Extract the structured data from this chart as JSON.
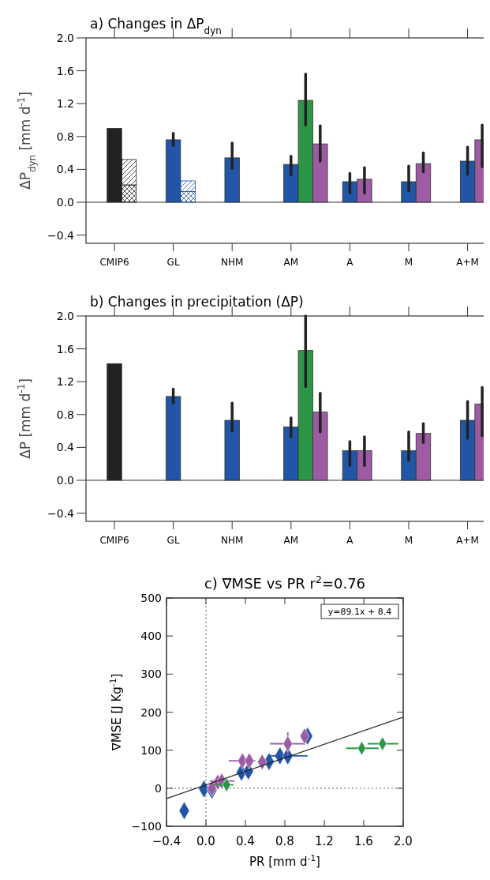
{
  "chart_data": [
    {
      "type": "bar",
      "title": "a) Changes in ΔP$_{dyn}$",
      "ylabel": "ΔP$_{dyn}$ [mm d$^{-1}$]",
      "categories": [
        "CMIP6",
        "GL",
        "NHM",
        "AM",
        "A",
        "M",
        "A+M"
      ],
      "ylim": [
        -0.5,
        2.0
      ],
      "yticks": [
        {
          "value": -0.4,
          "label": "−0.4"
        },
        {
          "value": 0,
          "label": "0.0"
        },
        {
          "value": 0.4,
          "label": "0.4"
        },
        {
          "value": 0.8,
          "label": "0.8"
        },
        {
          "value": 1.2,
          "label": "1.2"
        },
        {
          "value": 1.6,
          "label": "1.6"
        },
        {
          "value": 2.0,
          "label": "2.0"
        }
      ],
      "ref_lines": [
        {
          "axis": "y",
          "value": 0
        }
      ],
      "series": [
        {
          "color": "#222222",
          "values": [
            0.9,
            null,
            null,
            null,
            null,
            null,
            null
          ]
        },
        {
          "color": "#2155a6",
          "values": [
            null,
            0.76,
            0.54,
            0.46,
            0.25,
            0.25,
            0.5
          ],
          "errors": [
            null,
            [
              0.69,
              0.84
            ],
            [
              0.41,
              0.72
            ],
            [
              0.33,
              0.56
            ],
            [
              0.11,
              0.35
            ],
            [
              0.14,
              0.44
            ],
            [
              0.34,
              0.67
            ]
          ]
        },
        {
          "color": "#2a9646",
          "values": [
            null,
            null,
            null,
            1.24,
            null,
            null,
            null
          ],
          "errors": [
            null,
            null,
            null,
            [
              0.94,
              1.56
            ],
            null,
            null,
            null
          ]
        },
        {
          "color": "#9c5ba3",
          "values": [
            null,
            null,
            null,
            0.71,
            0.28,
            0.47,
            0.76
          ],
          "errors": [
            null,
            null,
            null,
            [
              0.5,
              0.93
            ],
            [
              0.11,
              0.42
            ],
            [
              0.37,
              0.6
            ],
            [
              0.43,
              0.94
            ]
          ]
        },
        {
          "colors": [
            "#222222",
            "#2155a6",
            null,
            null,
            null,
            null,
            null
          ],
          "values": [
            0.21,
            0.13,
            null,
            null,
            null,
            null,
            null
          ]
        },
        {
          "colors": [
            "#222222",
            "#2155a6",
            null,
            null,
            null,
            null,
            null
          ],
          "values": [
            0.31,
            0.13,
            null,
            null,
            null,
            null,
            null
          ],
          "base": [
            0.21,
            0.13,
            null,
            null,
            null,
            null,
            null
          ]
        }
      ]
    },
    {
      "type": "bar",
      "title": "b) Changes in precipitation (ΔP)",
      "ylabel": "ΔP [mm d$^{-1}$]",
      "categories": [
        "CMIP6",
        "GL",
        "NHM",
        "AM",
        "A",
        "M",
        "A+M"
      ],
      "ylim": [
        -0.5,
        2.0
      ],
      "yticks": [
        {
          "value": -0.4,
          "label": "−0.4"
        },
        {
          "value": 0,
          "label": "0.0"
        },
        {
          "value": 0.4,
          "label": "0.4"
        },
        {
          "value": 0.8,
          "label": "0.8"
        },
        {
          "value": 1.2,
          "label": "1.2"
        },
        {
          "value": 1.6,
          "label": "1.6"
        },
        {
          "value": 2.0,
          "label": "2.0"
        }
      ],
      "ref_lines": [
        {
          "axis": "y",
          "value": 0
        }
      ],
      "series": [
        {
          "color": "#222222",
          "values": [
            1.42,
            null,
            null,
            null,
            null,
            null,
            null
          ]
        },
        {
          "color": "#2155a6",
          "values": [
            null,
            1.02,
            0.73,
            0.65,
            0.36,
            0.36,
            0.73
          ],
          "errors": [
            null,
            [
              0.94,
              1.11
            ],
            [
              0.6,
              0.94
            ],
            [
              0.53,
              0.76
            ],
            [
              0.18,
              0.47
            ],
            [
              0.24,
              0.59
            ],
            [
              0.51,
              0.96
            ]
          ]
        },
        {
          "color": "#2a9646",
          "values": [
            null,
            null,
            null,
            1.58,
            null,
            null,
            null
          ],
          "errors": [
            null,
            null,
            null,
            [
              1.14,
              2.0
            ],
            null,
            null,
            null
          ]
        },
        {
          "color": "#9c5ba3",
          "values": [
            null,
            null,
            null,
            0.83,
            0.36,
            0.57,
            0.93
          ],
          "errors": [
            null,
            null,
            null,
            [
              0.59,
              1.06
            ],
            [
              0.18,
              0.53
            ],
            [
              0.46,
              0.69
            ],
            [
              0.54,
              1.13
            ]
          ]
        }
      ]
    },
    {
      "type": "scatter",
      "title": "c) ∇MSE vs PR r$^{2}$=0.76",
      "xlabel": "PR [mm d$^{-1}$]",
      "ylabel": "∇MSE [J Kg$^{-1}$]",
      "xlim": [
        -0.4,
        2.0
      ],
      "xticks": [
        {
          "value": -0.4,
          "label": "−0.4"
        },
        {
          "value": 0,
          "label": "0.0"
        },
        {
          "value": 0.4,
          "label": "0.4"
        },
        {
          "value": 0.8,
          "label": "0.8"
        },
        {
          "value": 1.2,
          "label": "1.2"
        },
        {
          "value": 1.6,
          "label": "1.6"
        },
        {
          "value": 2.0,
          "label": "2.0"
        }
      ],
      "ylim": [
        -100,
        500
      ],
      "yticks": [
        {
          "value": -100,
          "label": "−100"
        },
        0,
        100,
        200,
        300,
        400,
        500
      ],
      "marker": "diamond",
      "annotations": [
        "y=89.1x + 8.4"
      ],
      "ref_lines": [
        {
          "axis": "x",
          "value": 0,
          "line_style": "dotted"
        },
        {
          "axis": "y",
          "value": 0,
          "line_style": "dotted"
        }
      ],
      "series": [
        {
          "color": "#2155a6",
          "x": [
            -0.22,
            -0.02,
            0.06,
            0.36,
            0.43,
            0.64,
            0.75,
            0.83,
            1.03
          ],
          "values": [
            -59,
            -2,
            -5,
            42,
            45,
            70,
            85,
            85,
            137
          ],
          "xerrors": [
            null,
            null,
            null,
            null,
            null,
            null,
            null,
            [
              0.64,
              1.03
            ],
            null
          ],
          "errors": [
            null,
            null,
            null,
            null,
            null,
            [
              56,
              86
            ],
            null,
            null,
            null
          ]
        },
        {
          "color": "#9c5ba3",
          "x": [
            0.06,
            0.12,
            0.16,
            0.37,
            0.44,
            0.57,
            0.83,
            1.0
          ],
          "values": [
            0,
            16,
            19,
            72,
            72,
            69,
            117,
            137
          ],
          "xerrors": [
            null,
            null,
            [
              0.04,
              0.29
            ],
            [
              0.23,
              0.5
            ],
            null,
            null,
            [
              0.65,
              1.01
            ],
            null
          ],
          "errors": [
            null,
            null,
            [
              2,
              36
            ],
            [
              50,
              90
            ],
            null,
            null,
            [
              85,
              147
            ],
            null
          ]
        },
        {
          "color": "#2a9646",
          "x": [
            0.21,
            1.58,
            1.79
          ],
          "values": [
            9,
            105,
            117
          ],
          "xerrors": [
            [
              0.08,
              0.28
            ],
            [
              1.42,
              1.75
            ],
            [
              1.64,
              1.95
            ]
          ]
        },
        {
          "type": "line",
          "color": "#222222",
          "x": [
            -0.4,
            2.0
          ],
          "values": [
            -27,
            187
          ],
          "line_style": "solid",
          "marker": "none"
        }
      ]
    }
  ]
}
